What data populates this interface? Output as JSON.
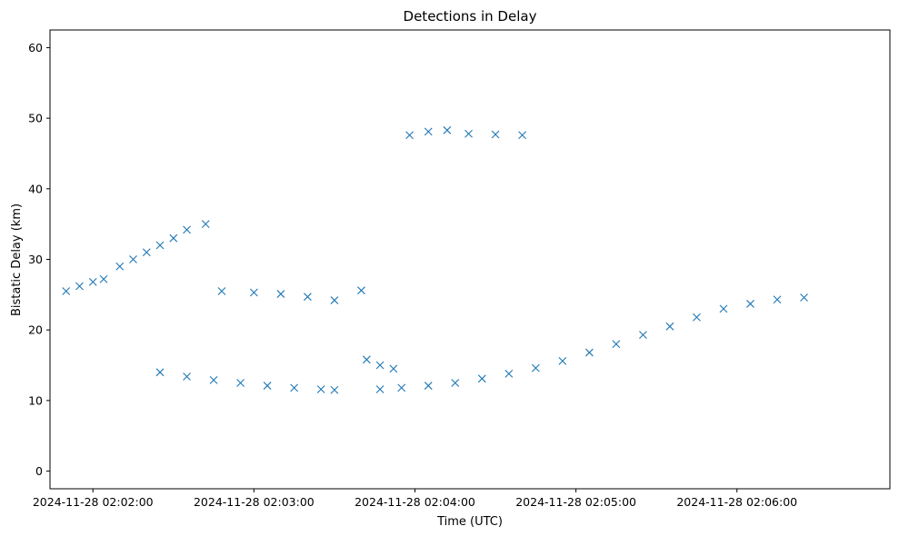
{
  "chart_data": {
    "type": "scatter",
    "title": "Detections in Delay",
    "xlabel": "Time (UTC)",
    "ylabel": "Bistatic Delay (km)",
    "marker": "x",
    "color": "#1f77b4",
    "grid": false,
    "legend": "none",
    "xlim": [
      "2024-11-28 02:01:44",
      "2024-11-28 02:06:57"
    ],
    "ylim": [
      -2.5,
      62.5
    ],
    "xticks": [
      "2024-11-28 02:02:00",
      "2024-11-28 02:03:00",
      "2024-11-28 02:04:00",
      "2024-11-28 02:05:00",
      "2024-11-28 02:06:00"
    ],
    "yticks": [
      0,
      10,
      20,
      30,
      40,
      50,
      60
    ],
    "series": [
      {
        "description": "strong track 1 (rising)",
        "points": [
          [
            "2024-11-28 02:03:47",
            11.6
          ],
          [
            "2024-11-28 02:03:55",
            11.8
          ],
          [
            "2024-11-28 02:04:05",
            12.1
          ],
          [
            "2024-11-28 02:04:15",
            12.5
          ],
          [
            "2024-11-28 02:04:25",
            13.1
          ],
          [
            "2024-11-28 02:04:35",
            13.8
          ],
          [
            "2024-11-28 02:04:45",
            14.6
          ],
          [
            "2024-11-28 02:04:55",
            15.6
          ],
          [
            "2024-11-28 02:05:05",
            16.8
          ],
          [
            "2024-11-28 02:05:15",
            18.0
          ],
          [
            "2024-11-28 02:05:25",
            19.3
          ],
          [
            "2024-11-28 02:05:35",
            20.5
          ],
          [
            "2024-11-28 02:05:45",
            21.8
          ],
          [
            "2024-11-28 02:05:55",
            23.0
          ],
          [
            "2024-11-28 02:06:05",
            23.7
          ],
          [
            "2024-11-28 02:06:15",
            24.3
          ],
          [
            "2024-11-28 02:06:25",
            24.6
          ]
        ]
      },
      {
        "description": "track 2 (descending)",
        "points": [
          [
            "2024-11-28 02:02:25",
            14.0
          ],
          [
            "2024-11-28 02:02:35",
            13.4
          ],
          [
            "2024-11-28 02:02:45",
            12.9
          ],
          [
            "2024-11-28 02:02:55",
            12.5
          ],
          [
            "2024-11-28 02:03:05",
            12.1
          ],
          [
            "2024-11-28 02:03:15",
            11.8
          ],
          [
            "2024-11-28 02:03:25",
            11.6
          ],
          [
            "2024-11-28 02:03:30",
            11.5
          ]
        ]
      },
      {
        "description": "track 3 (early rising)",
        "points": [
          [
            "2024-11-28 02:01:50",
            25.5
          ],
          [
            "2024-11-28 02:01:55",
            26.2
          ],
          [
            "2024-11-28 02:02:00",
            26.8
          ],
          [
            "2024-11-28 02:02:04",
            27.2
          ],
          [
            "2024-11-28 02:02:10",
            29.0
          ],
          [
            "2024-11-28 02:02:15",
            30.0
          ],
          [
            "2024-11-28 02:02:20",
            31.0
          ],
          [
            "2024-11-28 02:02:25",
            32.0
          ],
          [
            "2024-11-28 02:02:30",
            33.0
          ],
          [
            "2024-11-28 02:02:35",
            34.2
          ],
          [
            "2024-11-28 02:02:42",
            35.0
          ]
        ]
      },
      {
        "description": "track 4 (descending, mid)",
        "points": [
          [
            "2024-11-28 02:02:48",
            25.5
          ],
          [
            "2024-11-28 02:03:00",
            25.3
          ],
          [
            "2024-11-28 02:03:10",
            25.1
          ],
          [
            "2024-11-28 02:03:20",
            24.7
          ],
          [
            "2024-11-28 02:03:30",
            24.2
          ],
          [
            "2024-11-28 02:03:40",
            25.6
          ],
          [
            "2024-11-28 02:03:42",
            15.8
          ],
          [
            "2024-11-28 02:03:47",
            15.0
          ],
          [
            "2024-11-28 02:03:52",
            14.5
          ]
        ]
      },
      {
        "description": "track 5 (near 48 km)",
        "points": [
          [
            "2024-11-28 02:03:58",
            47.6
          ],
          [
            "2024-11-28 02:04:05",
            48.1
          ],
          [
            "2024-11-28 02:04:12",
            48.3
          ],
          [
            "2024-11-28 02:04:20",
            47.8
          ],
          [
            "2024-11-28 02:04:30",
            47.7
          ],
          [
            "2024-11-28 02:04:40",
            47.6
          ]
        ]
      }
    ]
  }
}
